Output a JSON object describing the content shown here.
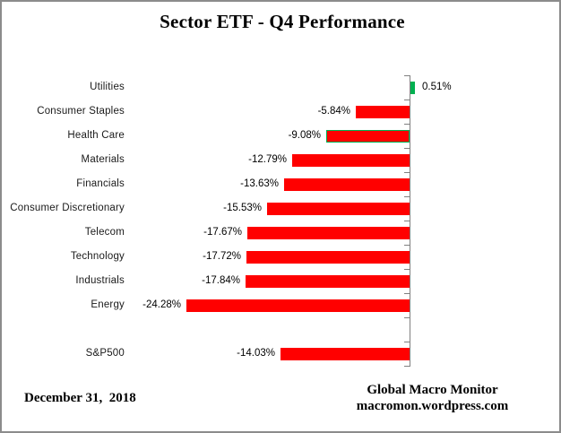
{
  "title": "Sector ETF - Q4 Performance",
  "chart_data": {
    "type": "bar",
    "orientation": "horizontal",
    "unit": "percent",
    "categories": [
      "Utilities",
      "Consumer Staples",
      "Health Care",
      "Materials",
      "Financials",
      "Consumer Discretionary",
      "Telecom",
      "Technology",
      "Industrials",
      "Energy"
    ],
    "values": [
      0.51,
      -5.84,
      -9.08,
      -12.79,
      -13.63,
      -15.53,
      -17.67,
      -17.72,
      -17.84,
      -24.28
    ],
    "value_labels": [
      "0.51%",
      "-5.84%",
      "-9.08%",
      "-12.79%",
      "-13.63%",
      "-15.53%",
      "-17.67%",
      "-17.72%",
      "-17.84%",
      "-24.28%"
    ],
    "benchmark": {
      "category": "S&P500",
      "value": -14.03,
      "value_label": "-14.03%"
    },
    "positive_color": "#00B050",
    "negative_color": "#FF0000",
    "outlined_category": "Health Care",
    "outline_color": "#00B050",
    "axis_color": "#808080",
    "xlabel": "",
    "ylabel": "",
    "grid": false,
    "legend": false
  },
  "footer": {
    "date": "December 31,  2018",
    "source_line1": "Global Macro Monitor",
    "source_line2": "macromon.wordpress.com"
  }
}
